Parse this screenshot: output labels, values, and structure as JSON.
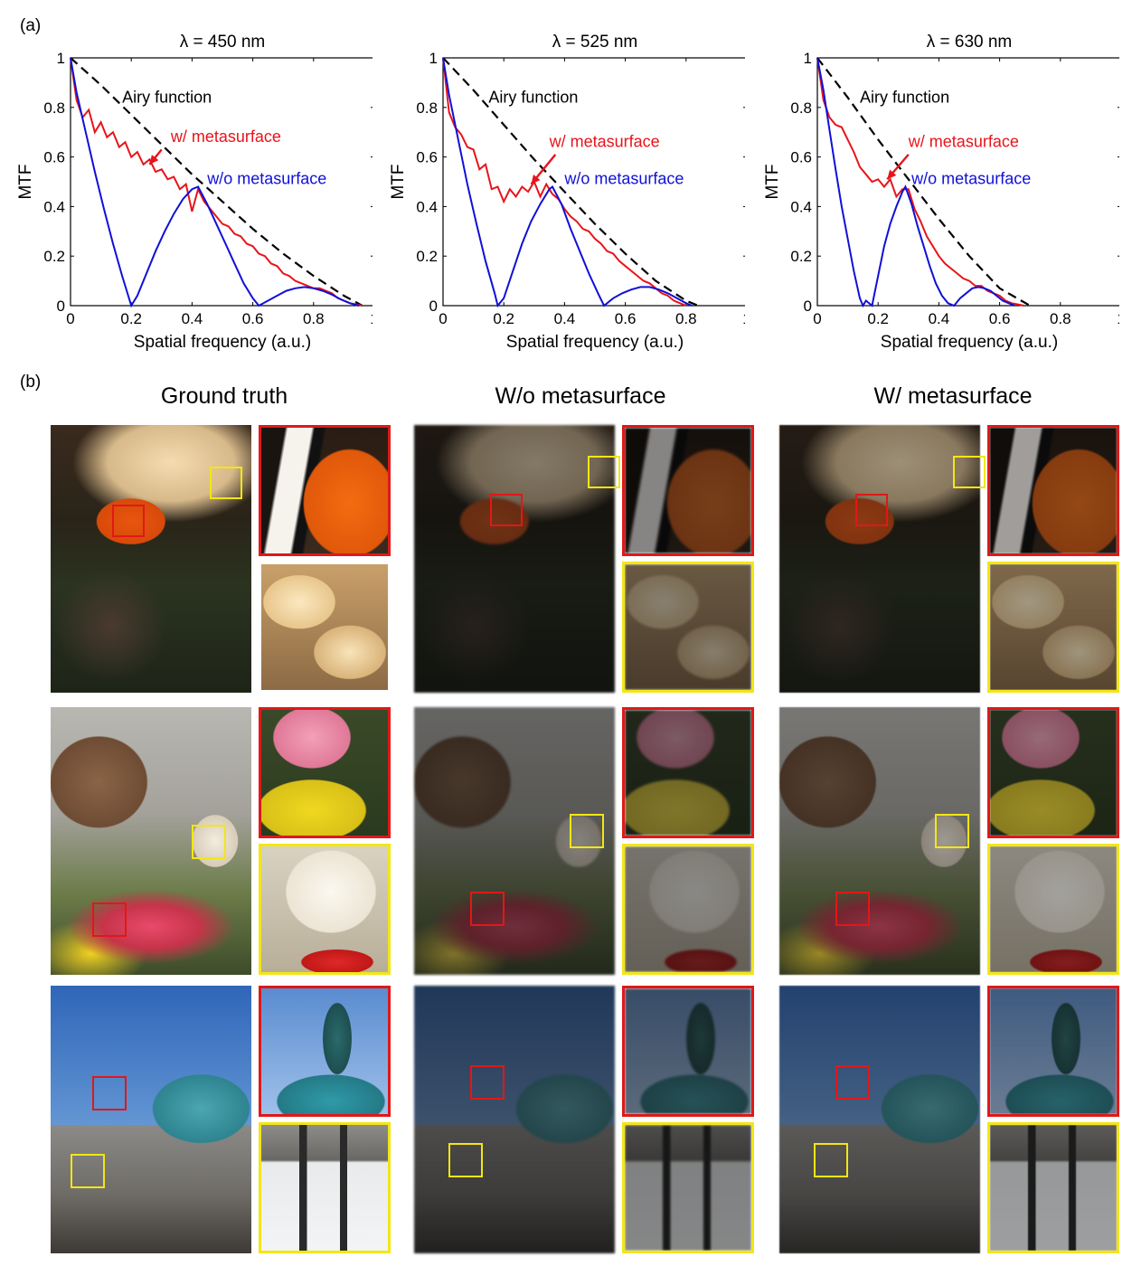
{
  "panel_a_label": "(a)",
  "panel_b_label": "(b)",
  "colors": {
    "with_metasurface": "#e8141a",
    "without_metasurface": "#1010d8",
    "airy": "#000000",
    "box_red": "#e01818",
    "box_yellow": "#f3e614"
  },
  "chart_data": [
    {
      "type": "line",
      "title": "λ = 450 nm",
      "xlabel": "Spatial frequency (a.u.)",
      "ylabel": "MTF",
      "xlim": [
        0,
        1
      ],
      "ylim": [
        0,
        1
      ],
      "xticks": [
        "0",
        "0.2",
        "0.4",
        "0.6",
        "0.8",
        "1"
      ],
      "yticks": [
        "0",
        "0.2",
        "0.4",
        "0.6",
        "0.8",
        "1"
      ],
      "annotations": [
        "Airy function",
        "w/ metasurface",
        "w/o metasurface"
      ],
      "series": [
        {
          "name": "Airy function",
          "style": "dashed",
          "x": [
            0,
            0.1,
            0.2,
            0.3,
            0.4,
            0.5,
            0.6,
            0.7,
            0.8,
            0.9,
            0.96
          ],
          "y": [
            1,
            0.89,
            0.77,
            0.65,
            0.53,
            0.42,
            0.31,
            0.21,
            0.12,
            0.04,
            0
          ]
        },
        {
          "name": "w/ metasurface",
          "x": [
            0,
            0.02,
            0.04,
            0.06,
            0.08,
            0.1,
            0.12,
            0.14,
            0.16,
            0.18,
            0.2,
            0.22,
            0.24,
            0.26,
            0.28,
            0.3,
            0.32,
            0.34,
            0.36,
            0.38,
            0.4,
            0.42,
            0.44,
            0.46,
            0.48,
            0.5,
            0.52,
            0.54,
            0.56,
            0.58,
            0.6,
            0.62,
            0.64,
            0.66,
            0.68,
            0.7,
            0.72,
            0.74,
            0.76,
            0.78,
            0.8,
            0.82,
            0.84,
            0.86,
            0.88,
            0.9,
            0.92,
            0.94,
            0.96
          ],
          "y": [
            1,
            0.83,
            0.76,
            0.79,
            0.7,
            0.74,
            0.68,
            0.7,
            0.64,
            0.66,
            0.6,
            0.62,
            0.57,
            0.59,
            0.54,
            0.55,
            0.51,
            0.52,
            0.47,
            0.49,
            0.38,
            0.47,
            0.42,
            0.39,
            0.36,
            0.33,
            0.32,
            0.29,
            0.28,
            0.25,
            0.24,
            0.21,
            0.2,
            0.17,
            0.16,
            0.13,
            0.12,
            0.1,
            0.09,
            0.08,
            0.07,
            0.07,
            0.06,
            0.05,
            0.03,
            0.02,
            0.01,
            0.005,
            0
          ]
        },
        {
          "name": "w/o metasurface",
          "x": [
            0,
            0.02,
            0.05,
            0.08,
            0.11,
            0.14,
            0.17,
            0.2,
            0.22,
            0.25,
            0.28,
            0.31,
            0.34,
            0.37,
            0.4,
            0.42,
            0.45,
            0.48,
            0.51,
            0.54,
            0.57,
            0.6,
            0.62,
            0.65,
            0.68,
            0.71,
            0.74,
            0.77,
            0.8,
            0.83,
            0.86,
            0.89,
            0.92,
            0.95
          ],
          "y": [
            1,
            0.86,
            0.7,
            0.54,
            0.39,
            0.25,
            0.12,
            0.0,
            0.04,
            0.13,
            0.22,
            0.3,
            0.37,
            0.43,
            0.47,
            0.48,
            0.41,
            0.33,
            0.25,
            0.17,
            0.09,
            0.03,
            0.0,
            0.02,
            0.04,
            0.06,
            0.07,
            0.075,
            0.07,
            0.06,
            0.045,
            0.025,
            0.01,
            0
          ]
        }
      ]
    },
    {
      "type": "line",
      "title": "λ = 525 nm",
      "xlabel": "Spatial frequency (a.u.)",
      "ylabel": "MTF",
      "xlim": [
        0,
        1
      ],
      "ylim": [
        0,
        1
      ],
      "xticks": [
        "0",
        "0.2",
        "0.4",
        "0.6",
        "0.8",
        "1"
      ],
      "yticks": [
        "0",
        "0.2",
        "0.4",
        "0.6",
        "0.8",
        "1"
      ],
      "annotations": [
        "Airy function",
        "w/ metasurface",
        "w/o metasurface"
      ],
      "series": [
        {
          "name": "Airy function",
          "style": "dashed",
          "x": [
            0,
            0.1,
            0.2,
            0.3,
            0.4,
            0.5,
            0.6,
            0.7,
            0.8,
            0.84
          ],
          "y": [
            1,
            0.87,
            0.73,
            0.59,
            0.46,
            0.33,
            0.21,
            0.1,
            0.02,
            0
          ]
        },
        {
          "name": "w/ metasurface",
          "x": [
            0,
            0.02,
            0.04,
            0.06,
            0.08,
            0.1,
            0.12,
            0.14,
            0.16,
            0.18,
            0.2,
            0.22,
            0.24,
            0.26,
            0.28,
            0.3,
            0.32,
            0.34,
            0.36,
            0.38,
            0.4,
            0.42,
            0.44,
            0.46,
            0.48,
            0.5,
            0.52,
            0.54,
            0.56,
            0.58,
            0.6,
            0.62,
            0.64,
            0.66,
            0.68,
            0.7,
            0.72,
            0.74,
            0.76,
            0.78,
            0.8
          ],
          "y": [
            1,
            0.78,
            0.72,
            0.69,
            0.64,
            0.63,
            0.55,
            0.57,
            0.47,
            0.48,
            0.42,
            0.47,
            0.44,
            0.48,
            0.46,
            0.5,
            0.44,
            0.49,
            0.45,
            0.43,
            0.39,
            0.36,
            0.34,
            0.31,
            0.3,
            0.27,
            0.25,
            0.22,
            0.21,
            0.18,
            0.16,
            0.14,
            0.12,
            0.1,
            0.09,
            0.07,
            0.05,
            0.04,
            0.02,
            0.01,
            0
          ]
        },
        {
          "name": "w/o metasurface",
          "x": [
            0,
            0.02,
            0.05,
            0.08,
            0.11,
            0.14,
            0.17,
            0.18,
            0.2,
            0.23,
            0.26,
            0.29,
            0.32,
            0.35,
            0.36,
            0.39,
            0.42,
            0.45,
            0.48,
            0.51,
            0.53,
            0.56,
            0.59,
            0.62,
            0.65,
            0.68,
            0.71,
            0.74,
            0.77,
            0.8,
            0.82
          ],
          "y": [
            1,
            0.85,
            0.67,
            0.49,
            0.33,
            0.18,
            0.05,
            0.0,
            0.03,
            0.14,
            0.25,
            0.34,
            0.41,
            0.47,
            0.48,
            0.41,
            0.31,
            0.22,
            0.13,
            0.05,
            0.0,
            0.03,
            0.05,
            0.065,
            0.075,
            0.075,
            0.065,
            0.05,
            0.03,
            0.01,
            0
          ]
        }
      ]
    },
    {
      "type": "line",
      "title": "λ = 630 nm",
      "xlabel": "Spatial frequency (a.u.)",
      "ylabel": "MTF",
      "xlim": [
        0,
        1
      ],
      "ylim": [
        0,
        1
      ],
      "xticks": [
        "0",
        "0.2",
        "0.4",
        "0.6",
        "0.8",
        "1"
      ],
      "yticks": [
        "0",
        "0.2",
        "0.4",
        "0.6",
        "0.8",
        "1"
      ],
      "annotations": [
        "Airy function",
        "w/ metasurface",
        "w/o metasurface"
      ],
      "series": [
        {
          "name": "Airy function",
          "style": "dashed",
          "x": [
            0,
            0.1,
            0.2,
            0.3,
            0.4,
            0.5,
            0.6,
            0.7
          ],
          "y": [
            1,
            0.84,
            0.67,
            0.51,
            0.35,
            0.2,
            0.07,
            0
          ]
        },
        {
          "name": "w/ metasurface",
          "x": [
            0,
            0.02,
            0.04,
            0.06,
            0.08,
            0.1,
            0.12,
            0.14,
            0.16,
            0.18,
            0.2,
            0.22,
            0.24,
            0.26,
            0.28,
            0.3,
            0.32,
            0.34,
            0.36,
            0.38,
            0.4,
            0.42,
            0.44,
            0.46,
            0.48,
            0.5,
            0.52,
            0.54,
            0.56,
            0.58,
            0.6,
            0.62,
            0.64,
            0.66,
            0.68
          ],
          "y": [
            1,
            0.83,
            0.76,
            0.73,
            0.72,
            0.67,
            0.62,
            0.56,
            0.53,
            0.5,
            0.51,
            0.48,
            0.51,
            0.44,
            0.47,
            0.47,
            0.39,
            0.34,
            0.28,
            0.24,
            0.2,
            0.17,
            0.15,
            0.13,
            0.11,
            0.1,
            0.08,
            0.08,
            0.06,
            0.05,
            0.04,
            0.02,
            0.01,
            0.005,
            0
          ]
        },
        {
          "name": "w/o metasurface",
          "x": [
            0,
            0.02,
            0.04,
            0.06,
            0.08,
            0.1,
            0.12,
            0.14,
            0.15,
            0.16,
            0.18,
            0.2,
            0.22,
            0.24,
            0.26,
            0.28,
            0.29,
            0.31,
            0.33,
            0.35,
            0.37,
            0.39,
            0.41,
            0.43,
            0.45,
            0.47,
            0.49,
            0.51,
            0.53,
            0.55,
            0.57,
            0.59,
            0.61,
            0.63,
            0.65
          ],
          "y": [
            1,
            0.87,
            0.71,
            0.55,
            0.4,
            0.27,
            0.14,
            0.03,
            0.0,
            0.02,
            0.0,
            0.12,
            0.24,
            0.33,
            0.4,
            0.46,
            0.48,
            0.41,
            0.32,
            0.24,
            0.16,
            0.09,
            0.04,
            0.01,
            0.0,
            0.03,
            0.05,
            0.07,
            0.075,
            0.07,
            0.06,
            0.04,
            0.02,
            0.01,
            0
          ]
        }
      ]
    }
  ],
  "columns": [
    "Ground truth",
    "W/o metasurface",
    "W/ metasurface"
  ]
}
